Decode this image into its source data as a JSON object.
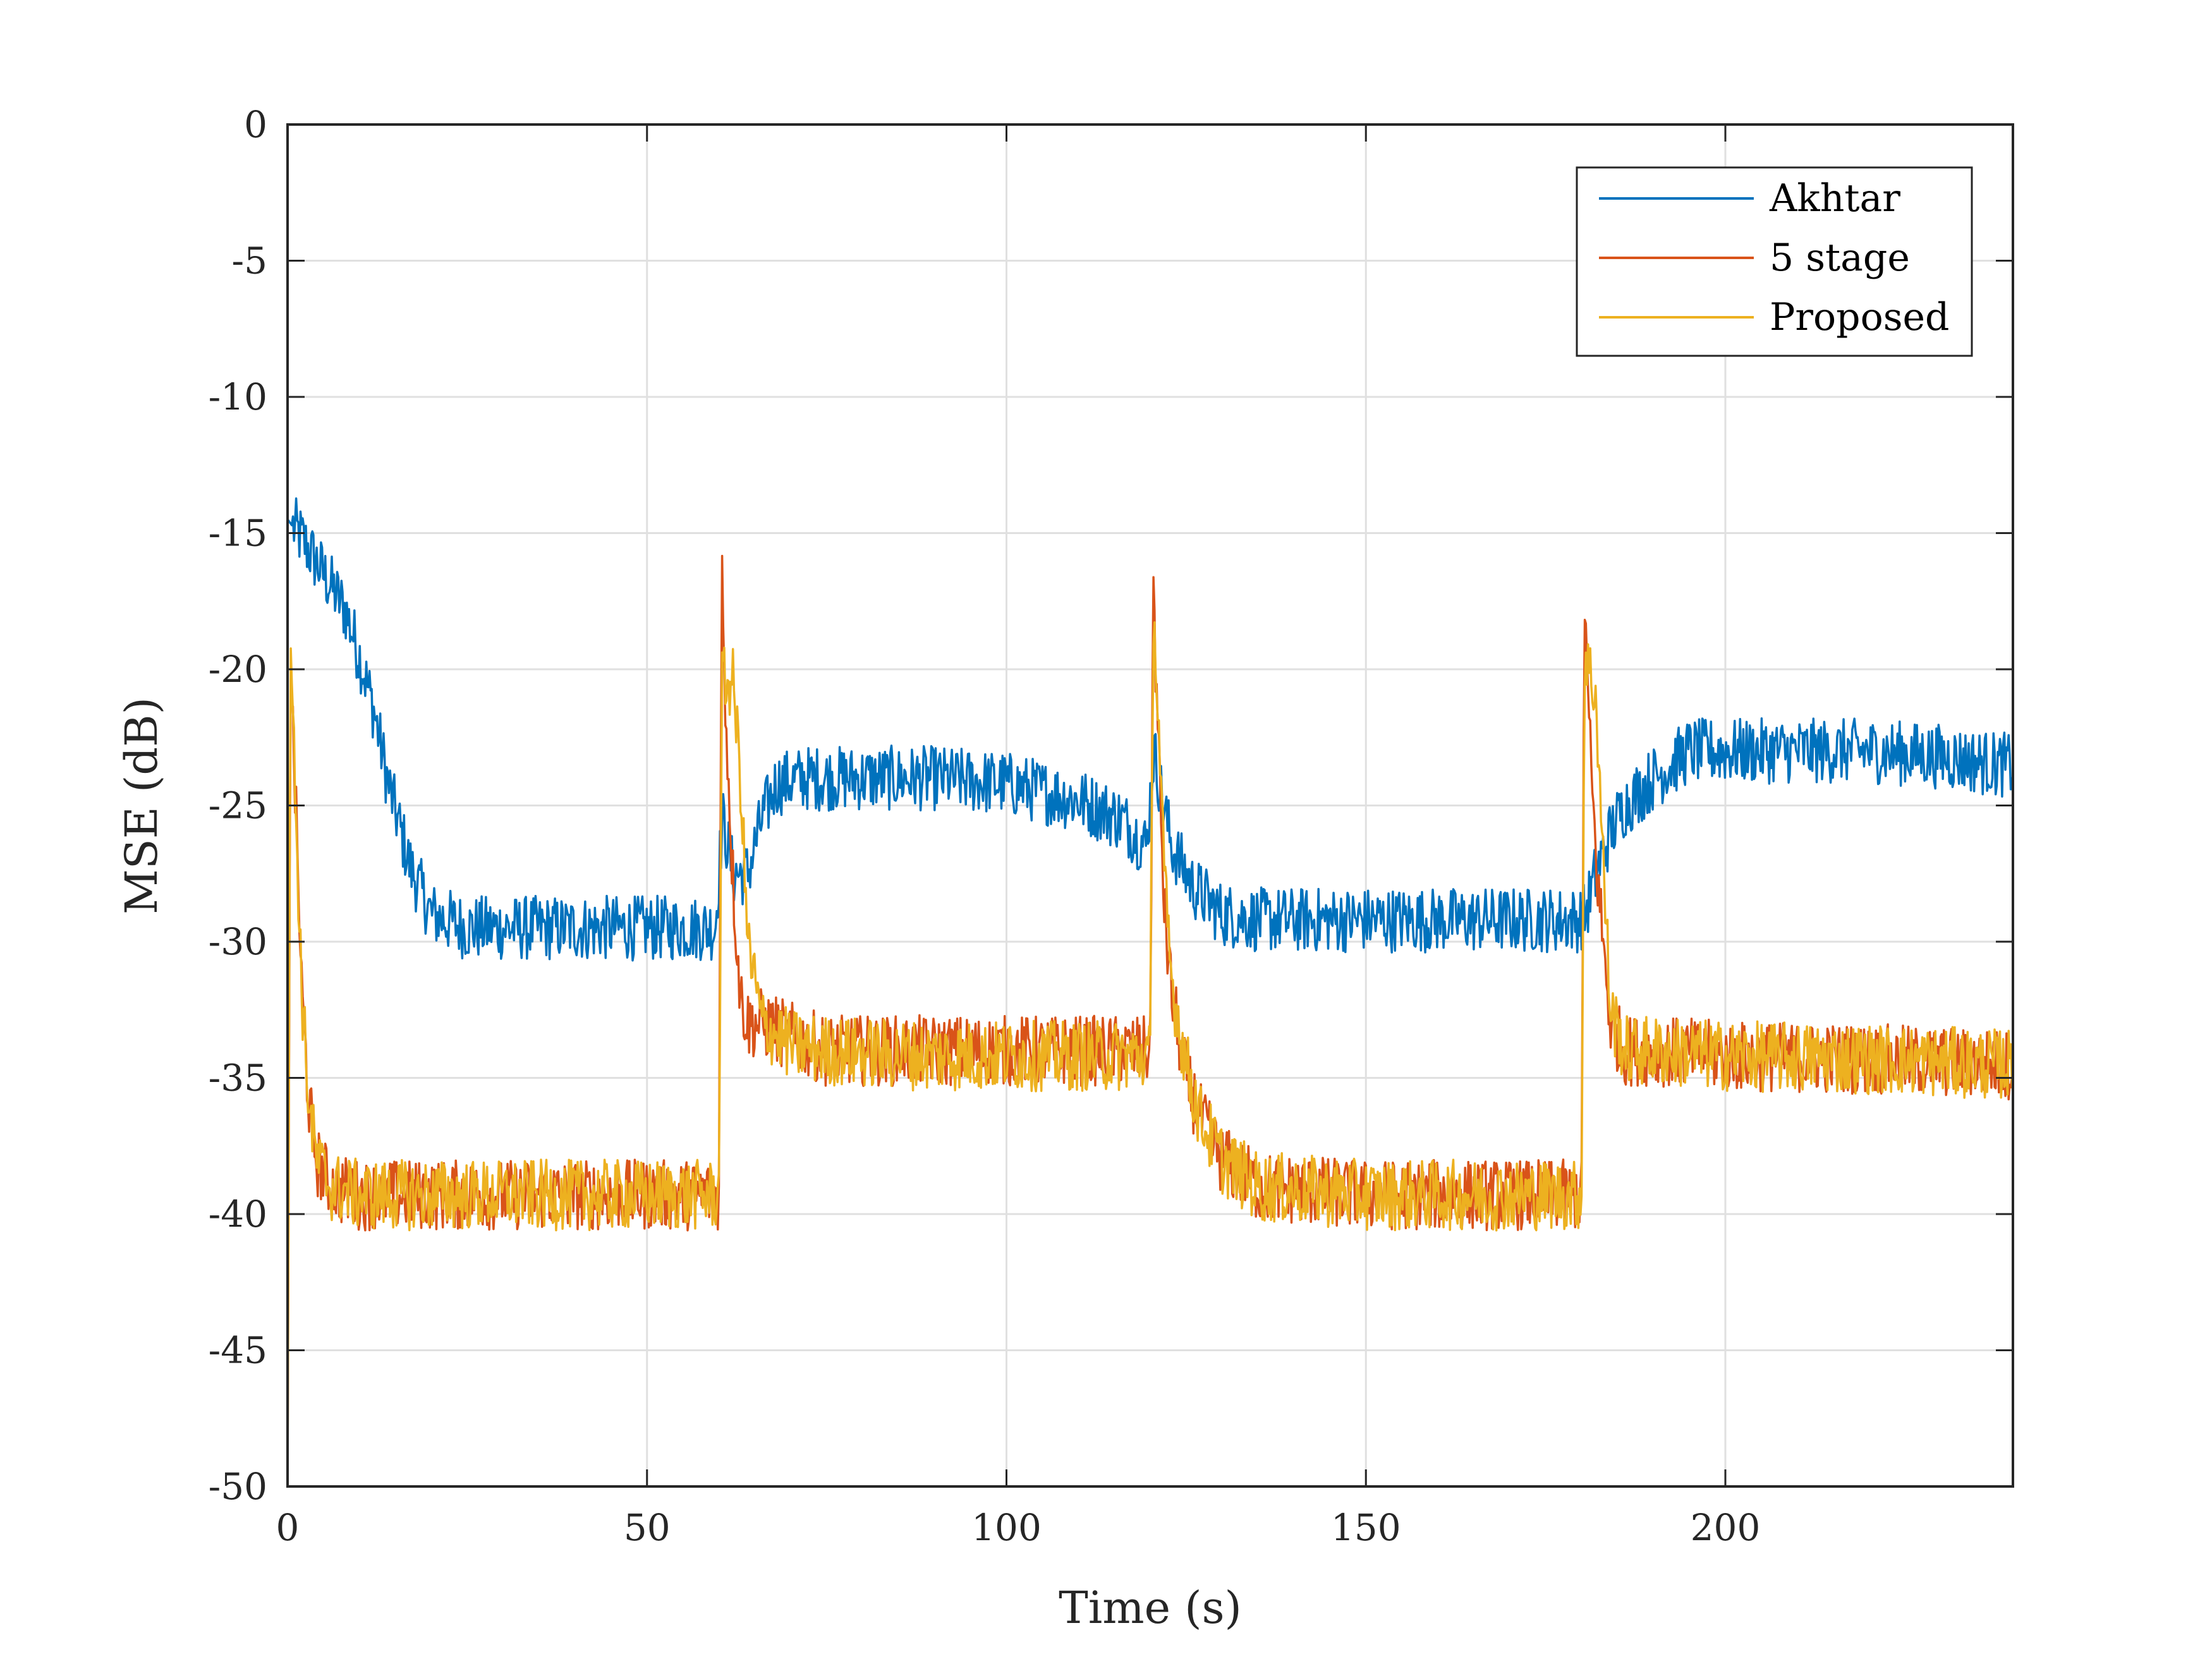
{
  "chart_data": {
    "type": "line",
    "title": "",
    "xlabel": "Time (s)",
    "ylabel": "MSE (dB)",
    "xlim": [
      0,
      240
    ],
    "ylim": [
      -50,
      0
    ],
    "xticks": [
      0,
      50,
      100,
      150,
      200
    ],
    "xtick_labels": [
      "0",
      "50",
      "100",
      "150",
      "200"
    ],
    "yticks": [
      0,
      -5,
      -10,
      -15,
      -20,
      -25,
      -30,
      -35,
      -40,
      -45,
      -50
    ],
    "ytick_labels": [
      "0",
      "-5",
      "-10",
      "-15",
      "-20",
      "-25",
      "-30",
      "-35",
      "-40",
      "-45",
      "-50"
    ],
    "grid": true,
    "legend_location": "top-right",
    "series": [
      {
        "name": "Akhtar",
        "color": "#0072BD",
        "noise": 1.2,
        "x": [
          0,
          2,
          5,
          8,
          10,
          12,
          14,
          17,
          20,
          25,
          30,
          40,
          50,
          59.5,
          60.5,
          62,
          64,
          66,
          68,
          72,
          80,
          90,
          100,
          110,
          116,
          119.5,
          120.5,
          121.5,
          123,
          126,
          130,
          135,
          150,
          170,
          179.5,
          180.5,
          182,
          184,
          186,
          190,
          195,
          200,
          220,
          230,
          238,
          240
        ],
        "y": [
          -14.5,
          -15.2,
          -16.5,
          -17.8,
          -19.5,
          -21.5,
          -24.2,
          -27.2,
          -29,
          -29.5,
          -29.5,
          -29.5,
          -29.5,
          -29.5,
          -25.5,
          -27.5,
          -27.5,
          -25.5,
          -24.2,
          -24,
          -24,
          -24,
          -24.2,
          -24.8,
          -25.5,
          -26.5,
          -23,
          -24.5,
          -26.5,
          -28,
          -29,
          -29.2,
          -29.2,
          -29.2,
          -29.2,
          -29,
          -27.5,
          -26,
          -25,
          -24,
          -23,
          -23,
          -23,
          -23.2,
          -23.5,
          -23.5
        ]
      },
      {
        "name": "5 stage",
        "color": "#D95319",
        "noise": 1.3,
        "x": [
          0,
          0.4,
          1,
          2,
          3,
          4,
          6,
          10,
          20,
          40,
          59.5,
          60,
          60.4,
          61,
          62,
          63,
          64,
          66,
          70,
          75,
          90,
          110,
          119.5,
          120,
          120.4,
          121,
          122,
          123,
          125,
          127,
          130,
          135,
          150,
          170,
          179.5,
          180,
          180.4,
          181,
          182,
          183,
          184,
          186,
          190,
          200,
          220,
          238,
          240
        ],
        "y": [
          -50,
          -20,
          -24,
          -32,
          -36,
          -38,
          -39,
          -39.3,
          -39.3,
          -39.3,
          -39.3,
          -39.3,
          -16,
          -22,
          -28,
          -32,
          -33,
          -33,
          -33.5,
          -34,
          -34,
          -34,
          -34,
          -34,
          -16.5,
          -22,
          -29,
          -32,
          -35,
          -36.5,
          -38,
          -39,
          -39.3,
          -39.3,
          -39.3,
          -39.3,
          -17,
          -22,
          -27,
          -30,
          -33,
          -34,
          -34,
          -34.2,
          -34.3,
          -34.5,
          -34.5
        ]
      },
      {
        "name": "Proposed",
        "color": "#EDB120",
        "noise": 1.3,
        "x": [
          0,
          0.4,
          1,
          2,
          3,
          4,
          6,
          10,
          20,
          40,
          59.5,
          60,
          60.4,
          61,
          62,
          63,
          64,
          66,
          70,
          75,
          90,
          110,
          119.5,
          120,
          120.4,
          121,
          122,
          123,
          125,
          127,
          130,
          135,
          150,
          170,
          179.5,
          180,
          180.4,
          181,
          182,
          183,
          184,
          186,
          190,
          200,
          220,
          238,
          240
        ],
        "y": [
          -50,
          -18.8,
          -24,
          -32,
          -36,
          -38,
          -39,
          -39.3,
          -39.3,
          -39.3,
          -39.3,
          -39.3,
          -20.5,
          -20.5,
          -20.5,
          -24,
          -30,
          -33,
          -33.8,
          -34,
          -34.2,
          -34.2,
          -34.2,
          -34.2,
          -17.5,
          -21,
          -28,
          -31.5,
          -34.5,
          -36.5,
          -38,
          -39,
          -39.3,
          -39.3,
          -39.3,
          -39.3,
          -19.5,
          -20,
          -21,
          -27,
          -32.5,
          -34,
          -34,
          -34.2,
          -34.3,
          -34.5,
          -34.5
        ]
      }
    ]
  }
}
